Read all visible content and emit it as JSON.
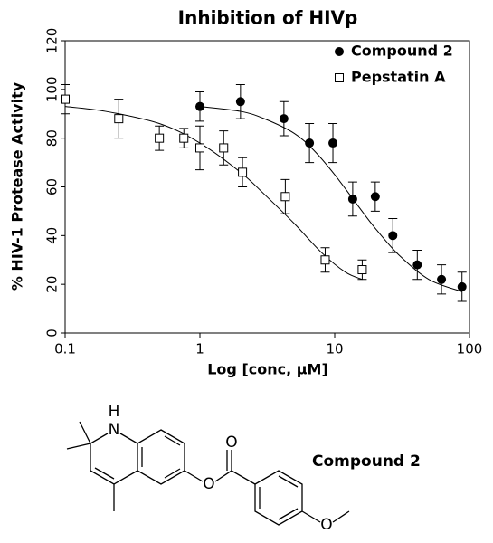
{
  "chart_data": {
    "type": "scatter",
    "title": "Inhibition of HIVp",
    "x_label": "Log [conc, μM]",
    "y_label": "% HIV-1 Protease Activity",
    "xscale": "log",
    "xlim": [
      0.1,
      100
    ],
    "xticks": [
      0.1,
      1,
      10,
      100
    ],
    "ylim": [
      0,
      120
    ],
    "yticks": [
      0,
      20,
      40,
      60,
      80,
      100,
      120
    ],
    "legend": "upper right",
    "series": [
      {
        "name": "Compound 2",
        "color": "#000000",
        "marker": "filled-circle",
        "x": [
          1,
          2,
          4.2,
          6.5,
          9.7,
          13.6,
          20,
          27,
          41,
          62,
          88
        ],
        "values": [
          93,
          95,
          88,
          78,
          78,
          55,
          56,
          40,
          28,
          22,
          19
        ],
        "errors": [
          6,
          7,
          7,
          8,
          8,
          7,
          6,
          7,
          6,
          6,
          6
        ],
        "curve_x": [
          1,
          2,
          3,
          5,
          7,
          10,
          15,
          20,
          30,
          50,
          88
        ],
        "curve_y": [
          93,
          91,
          88,
          82,
          75,
          65,
          52,
          43,
          32,
          22,
          17
        ]
      },
      {
        "name": "Pepstatin A",
        "color": "#000000",
        "marker": "open-square",
        "x": [
          0.1,
          0.25,
          0.5,
          0.76,
          1,
          1.5,
          2.07,
          4.3,
          8.5,
          16
        ],
        "values": [
          96,
          88,
          80,
          80,
          76,
          76,
          66,
          56,
          30,
          26
        ],
        "errors": [
          6,
          8,
          5,
          4,
          9,
          7,
          6,
          7,
          5,
          4
        ],
        "curve_x": [
          0.1,
          0.2,
          0.5,
          1,
          2,
          3,
          5,
          8,
          12,
          16
        ],
        "curve_y": [
          93,
          91,
          86,
          78,
          66,
          57,
          45,
          33,
          25,
          22
        ]
      }
    ]
  },
  "structure": {
    "label": "Compound 2",
    "atoms": [
      "N",
      "H",
      "O",
      "O",
      "O"
    ]
  }
}
